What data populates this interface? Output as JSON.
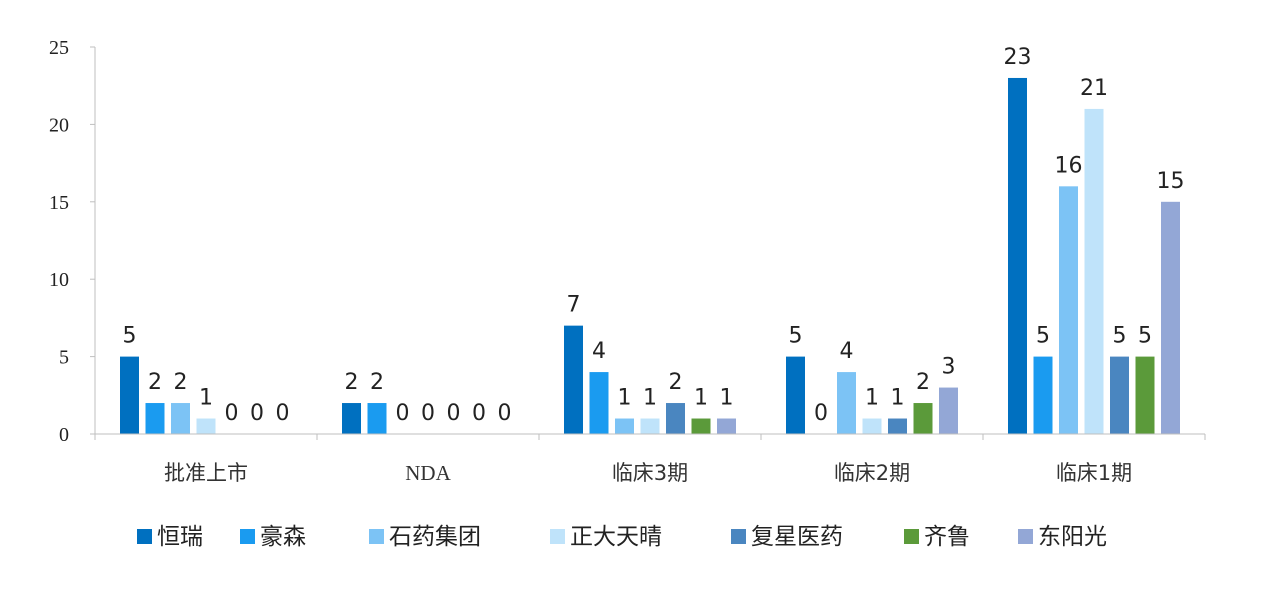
{
  "chart_data": {
    "type": "bar",
    "categories": [
      "批准上市",
      "NDA",
      "临床3期",
      "临床2期",
      "临床1期"
    ],
    "series": [
      {
        "name": "恒瑞",
        "color": "#0070C0",
        "values": [
          5,
          2,
          7,
          5,
          23
        ]
      },
      {
        "name": "豪森",
        "color": "#1A9BF0",
        "values": [
          2,
          2,
          4,
          0,
          5
        ]
      },
      {
        "name": "石药集团",
        "color": "#7CC3F5",
        "values": [
          2,
          0,
          1,
          4,
          16
        ]
      },
      {
        "name": "正大天晴",
        "color": "#BFE3FA",
        "values": [
          1,
          0,
          1,
          1,
          21
        ]
      },
      {
        "name": "复星医药",
        "color": "#4A86C0",
        "values": [
          0,
          0,
          2,
          1,
          5
        ]
      },
      {
        "name": "齐鲁",
        "color": "#5B9A3A",
        "values": [
          0,
          0,
          1,
          2,
          5
        ]
      },
      {
        "name": "东阳光",
        "color": "#93A7D6",
        "values": [
          0,
          0,
          1,
          3,
          15
        ]
      }
    ],
    "title": "",
    "xlabel": "",
    "ylabel": "",
    "ylim": [
      0,
      25
    ],
    "yticks": [
      0,
      5,
      10,
      15,
      20,
      25
    ],
    "grid": false,
    "legend_position": "bottom"
  }
}
